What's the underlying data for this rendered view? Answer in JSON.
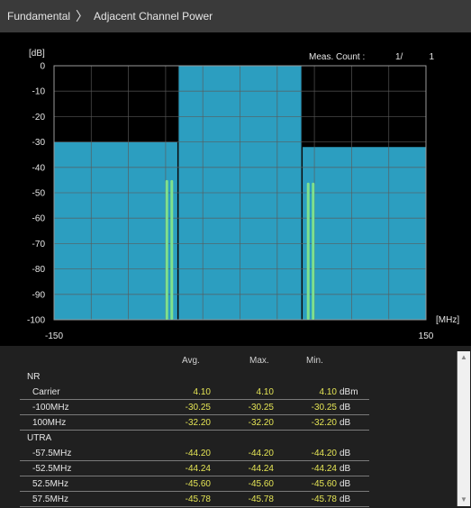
{
  "breadcrumb": {
    "root": "Fundamental",
    "page": "Adjacent Channel Power"
  },
  "graph": {
    "y_unit": "[dB]",
    "x_unit": "[MHz]",
    "y_ticks": [
      "0",
      "-10",
      "-20",
      "-30",
      "-40",
      "-50",
      "-60",
      "-70",
      "-80",
      "-90",
      "-100"
    ],
    "x_left": "-150",
    "x_right": "150",
    "meas_label": "Meas. Count :",
    "meas_current": "1/",
    "meas_total": "1"
  },
  "chart_data": {
    "type": "bar",
    "x_range": [
      -150,
      150
    ],
    "ylim": [
      -100,
      0
    ],
    "grid": true,
    "spectrum_blocks": [
      {
        "x0": -150,
        "x1": -50,
        "y": -30
      },
      {
        "x0": -50,
        "x1": 50,
        "y": 0
      },
      {
        "x0": 50,
        "x1": 150,
        "y": -32
      }
    ],
    "markers": [
      {
        "x": -59,
        "y": -45
      },
      {
        "x": -55,
        "y": -45
      },
      {
        "x": 55,
        "y": -46
      },
      {
        "x": 59,
        "y": -46
      }
    ],
    "colors": {
      "block": "#2c9ec0",
      "marker": "#7fe08c",
      "grid": "#5a5a5a"
    }
  },
  "table": {
    "headers": {
      "avg": "Avg.",
      "max": "Max.",
      "min": "Min."
    },
    "rows": [
      {
        "label": "NR",
        "indent": false,
        "line": false
      },
      {
        "label": "Carrier",
        "indent": true,
        "line": true,
        "avg": "4.10",
        "max": "4.10",
        "min": "4.10",
        "unit": "dBm"
      },
      {
        "label": "-100MHz",
        "indent": true,
        "line": true,
        "avg": "-30.25",
        "max": "-30.25",
        "min": "-30.25",
        "unit": "dB"
      },
      {
        "label": "100MHz",
        "indent": true,
        "line": true,
        "avg": "-32.20",
        "max": "-32.20",
        "min": "-32.20",
        "unit": "dB"
      },
      {
        "label": "UTRA",
        "indent": false,
        "line": false
      },
      {
        "label": "-57.5MHz",
        "indent": true,
        "line": true,
        "avg": "-44.20",
        "max": "-44.20",
        "min": "-44.20",
        "unit": "dB"
      },
      {
        "label": "-52.5MHz",
        "indent": true,
        "line": true,
        "avg": "-44.24",
        "max": "-44.24",
        "min": "-44.24",
        "unit": "dB"
      },
      {
        "label": "52.5MHz",
        "indent": true,
        "line": true,
        "avg": "-45.60",
        "max": "-45.60",
        "min": "-45.60",
        "unit": "dB"
      },
      {
        "label": "57.5MHz",
        "indent": true,
        "line": true,
        "avg": "-45.78",
        "max": "-45.78",
        "min": "-45.78",
        "unit": "dB"
      }
    ]
  }
}
